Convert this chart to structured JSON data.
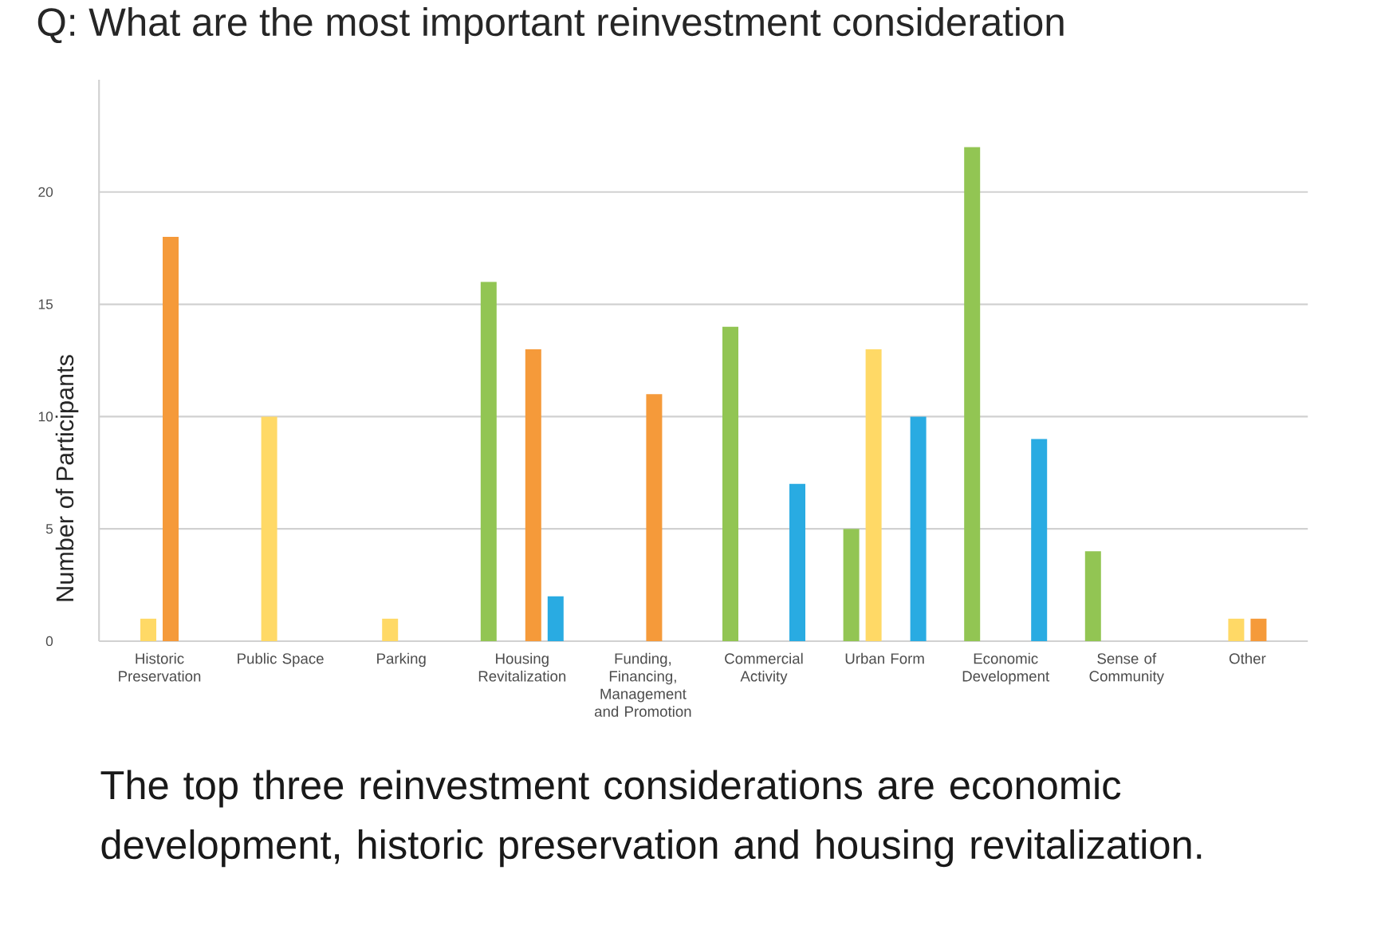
{
  "chart_data": {
    "type": "bar",
    "title": "Q: What are the most important reinvestment consideration",
    "ylabel": "Number of Participants",
    "categories": [
      "Historic Preservation",
      "Public Space",
      "Parking",
      "Housing Revitalization",
      "Funding, Financing, Management and Promotion",
      "Commercial Activity",
      "Urban Form",
      "Economic Development",
      "Sense of Community",
      "Other"
    ],
    "series": [
      {
        "color": "#92c553",
        "values": [
          null,
          null,
          null,
          16,
          null,
          14,
          5,
          22,
          4,
          null
        ]
      },
      {
        "color": "#ffd966",
        "values": [
          1,
          10,
          1,
          null,
          null,
          null,
          13,
          null,
          null,
          1
        ]
      },
      {
        "color": "#f59a3a",
        "values": [
          18,
          null,
          null,
          13,
          11,
          null,
          null,
          null,
          null,
          1
        ]
      },
      {
        "color": "#29abe2",
        "values": [
          null,
          null,
          null,
          2,
          null,
          7,
          10,
          9,
          null,
          null
        ]
      }
    ],
    "ylim": [
      0,
      25
    ],
    "yticks": [
      0,
      5,
      10,
      15,
      20
    ],
    "grid": "y",
    "annotations": [
      "The top three reinvestment considerations are economic development, historic preservation and housing revitalization."
    ]
  }
}
